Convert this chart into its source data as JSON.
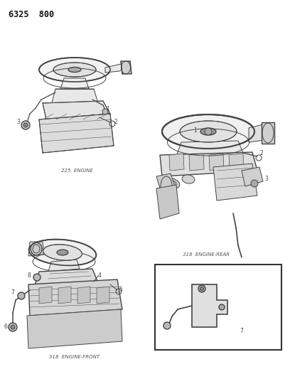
{
  "title": "6325  800",
  "bg_color": "#ffffff",
  "text_color": "#333333",
  "diagram1_label": "225  ENGINE",
  "diagram2_label": "318  ENGINE-REAR",
  "diagram3_label": "318  ENGINE-FRONT",
  "lc": "#444444",
  "lw": 0.7,
  "fig_w": 4.08,
  "fig_h": 5.33,
  "dpi": 100
}
